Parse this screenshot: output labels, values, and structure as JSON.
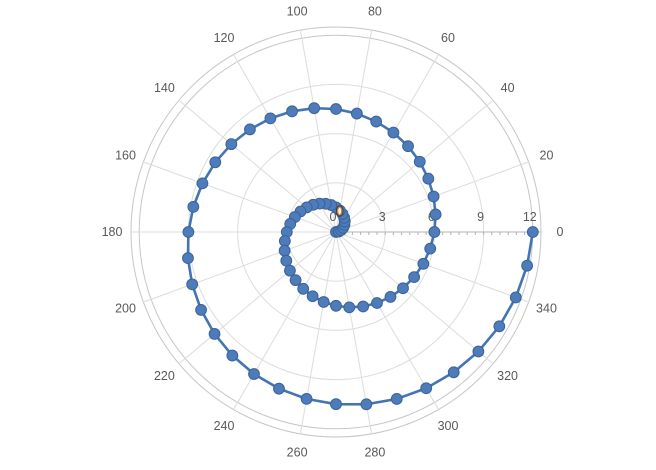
{
  "chart_data": {
    "type": "scatter",
    "subtype": "polar-spiral-line-with-markers",
    "title": "",
    "legend": "none",
    "angular_axis": {
      "unit": "degrees",
      "direction": "counterclockwise",
      "start_at": "right",
      "tick_interval": 20,
      "tick_labels": [
        0,
        20,
        40,
        60,
        80,
        100,
        120,
        140,
        160,
        180,
        200,
        220,
        240,
        260,
        280,
        300,
        320,
        340
      ]
    },
    "radial_axis": {
      "min": 0,
      "max": 12,
      "major_tick_interval": 3,
      "minor_tick_interval": 0.5,
      "tick_labels": [
        0,
        3,
        6,
        9,
        12
      ],
      "gridline_radii": [
        3,
        6,
        9,
        12
      ]
    },
    "grid": "on",
    "series": [
      {
        "name": "spiral",
        "marker": "circle",
        "points_theta_r": [
          [
            0,
            0
          ],
          [
            10,
            0.167
          ],
          [
            20,
            0.333
          ],
          [
            30,
            0.5
          ],
          [
            40,
            0.667
          ],
          [
            50,
            0.833
          ],
          [
            60,
            1
          ],
          [
            70,
            1.167
          ],
          [
            80,
            1.333
          ],
          [
            90,
            1.5
          ],
          [
            100,
            1.667
          ],
          [
            110,
            1.833
          ],
          [
            120,
            2
          ],
          [
            130,
            2.167
          ],
          [
            140,
            2.333
          ],
          [
            150,
            2.5
          ],
          [
            160,
            2.667
          ],
          [
            170,
            2.833
          ],
          [
            180,
            3
          ],
          [
            190,
            3.167
          ],
          [
            200,
            3.333
          ],
          [
            210,
            3.5
          ],
          [
            220,
            3.667
          ],
          [
            230,
            3.833
          ],
          [
            240,
            4
          ],
          [
            250,
            4.167
          ],
          [
            260,
            4.333
          ],
          [
            270,
            4.5
          ],
          [
            280,
            4.667
          ],
          [
            290,
            4.833
          ],
          [
            300,
            5
          ],
          [
            310,
            5.167
          ],
          [
            320,
            5.333
          ],
          [
            330,
            5.5
          ],
          [
            340,
            5.667
          ],
          [
            350,
            5.833
          ],
          [
            360,
            6
          ],
          [
            370,
            6.167
          ],
          [
            380,
            6.333
          ],
          [
            390,
            6.5
          ],
          [
            400,
            6.667
          ],
          [
            410,
            6.833
          ],
          [
            420,
            7
          ],
          [
            430,
            7.167
          ],
          [
            440,
            7.333
          ],
          [
            450,
            7.5
          ],
          [
            460,
            7.667
          ],
          [
            470,
            7.833
          ],
          [
            480,
            8
          ],
          [
            490,
            8.167
          ],
          [
            500,
            8.333
          ],
          [
            510,
            8.5
          ],
          [
            520,
            8.667
          ],
          [
            530,
            8.833
          ],
          [
            540,
            9
          ],
          [
            550,
            9.167
          ],
          [
            560,
            9.333
          ],
          [
            570,
            9.5
          ],
          [
            580,
            9.667
          ],
          [
            590,
            9.833
          ],
          [
            600,
            10
          ],
          [
            610,
            10.167
          ],
          [
            620,
            10.333
          ],
          [
            630,
            10.5
          ],
          [
            640,
            10.667
          ],
          [
            650,
            10.833
          ],
          [
            660,
            11
          ],
          [
            670,
            11.167
          ],
          [
            680,
            11.333
          ],
          [
            690,
            11.5
          ],
          [
            700,
            11.667
          ],
          [
            710,
            11.833
          ],
          [
            720,
            12
          ]
        ]
      }
    ],
    "highlight_point": {
      "theta_deg": 80,
      "r": 1.3
    },
    "colors": {
      "series_line": "#4374b4",
      "marker_fill": "#4e7cba",
      "marker_stroke": "#3a6398",
      "grid_line": "#dcdcdc",
      "grid_boundary": "#c6c6c6",
      "axis_line": "#b3b3b3",
      "label_text": "#595959",
      "highlight_ring_outer": "#3b3b3b",
      "highlight_ring_inner": "#d08033",
      "background": "#ffffff"
    }
  }
}
